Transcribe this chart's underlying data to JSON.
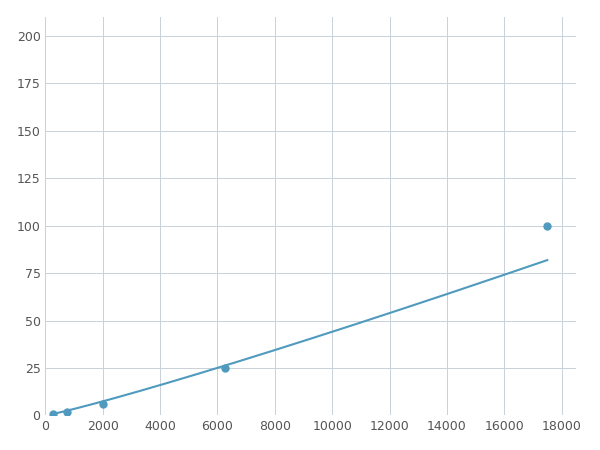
{
  "x": [
    250,
    750,
    2000,
    6250,
    17500
  ],
  "y": [
    1,
    2,
    6,
    25,
    100
  ],
  "line_color": "#4f9abe",
  "marker_color": "#4f9abe",
  "marker_size": 5,
  "marker_style": "o",
  "line_width": 1.5,
  "xlim": [
    0,
    18500
  ],
  "ylim": [
    0,
    210
  ],
  "xticks": [
    0,
    2000,
    4000,
    6000,
    8000,
    10000,
    12000,
    14000,
    16000,
    18000
  ],
  "yticks": [
    0,
    25,
    50,
    75,
    100,
    125,
    150,
    175,
    200
  ],
  "grid_color": "#c8d0d8",
  "bg_color": "#ffffff",
  "fig_bg_color": "#ffffff",
  "tick_color": "#555555",
  "tick_labelsize": 9
}
